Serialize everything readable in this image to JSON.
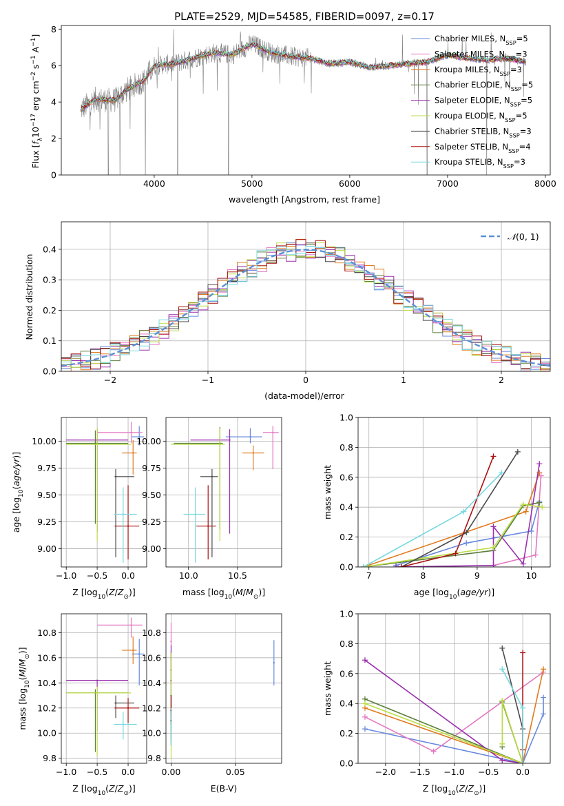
{
  "figure_title": "PLATE=2529, MJD=54585, FIBERID=0097, z=0.17",
  "colors": {
    "Chabrier MILES": "#6688dd",
    "Salpeter MILES": "#e377c2",
    "Kroupa MILES": "#e07b1f",
    "Chabrier ELODIE": "#5a7d3a",
    "Salpeter ELODIE": "#9b2fae",
    "Kroupa ELODIE": "#bbdd44",
    "Chabrier STELIB": "#4a4a4a",
    "Salpeter STELIB": "#aa1111",
    "Kroupa STELIB": "#77d8df"
  },
  "chart_data": [
    {
      "id": "spectrum",
      "type": "line",
      "xlabel": "wavelength [Angstrom, rest frame]",
      "ylabel": "Flux [f_λ10^-17 erg cm^-2 s^-1 A^-1]",
      "xlim": [
        3050,
        8050
      ],
      "ylim": [
        0,
        8.2
      ],
      "xticks": [
        4000,
        5000,
        6000,
        7000,
        8000
      ],
      "yticks": [
        0,
        2,
        4,
        6,
        8
      ],
      "grid": false,
      "legend_position": "top-right",
      "data_series": {
        "name": "data",
        "color": "#808080",
        "x_range": [
          3250,
          7800
        ]
      },
      "model_continuum": {
        "x": [
          3250,
          3400,
          3600,
          3700,
          3900,
          4000,
          4200,
          4400,
          4600,
          4800,
          5000,
          5200,
          5400,
          5600,
          5800,
          6000,
          6200,
          6400,
          6600,
          6800,
          7000,
          7200,
          7400,
          7600,
          7800
        ],
        "y": [
          3.6,
          4.15,
          4.1,
          4.6,
          5.2,
          6.0,
          6.1,
          6.4,
          6.7,
          6.6,
          7.2,
          6.7,
          6.5,
          6.4,
          6.1,
          6.2,
          5.9,
          6.0,
          6.1,
          6.2,
          6.6,
          6.4,
          6.3,
          6.4,
          6.2
        ]
      },
      "model_series": [
        {
          "name": "Chabrier MILES",
          "nssp": "5"
        },
        {
          "name": "Salpeter MILES",
          "nssp": "3"
        },
        {
          "name": "Kroupa MILES",
          "nssp": "3"
        },
        {
          "name": "Chabrier ELODIE",
          "nssp": "5"
        },
        {
          "name": "Salpeter ELODIE",
          "nssp": "5"
        },
        {
          "name": "Kroupa ELODIE",
          "nssp": "5"
        },
        {
          "name": "Chabrier STELIB",
          "nssp": "3"
        },
        {
          "name": "Salpeter STELIB",
          "nssp": "4"
        },
        {
          "name": "Kroupa STELIB",
          "nssp": "3"
        }
      ]
    },
    {
      "id": "residuals",
      "type": "bar",
      "xlabel": "(data-model)/error",
      "ylabel": "Normed distribution",
      "xlim": [
        -2.5,
        2.5
      ],
      "ylim": [
        0,
        0.49
      ],
      "xticks": [
        -2,
        -1,
        0,
        1,
        2
      ],
      "yticks": [
        0.0,
        0.1,
        0.2,
        0.3,
        0.4
      ],
      "grid": true,
      "legend_position": "top-right",
      "legend_label": "N(0,1)",
      "gaussian": {
        "mean": 0,
        "sigma": 1,
        "color": "#5b8fd6"
      },
      "histogram_bin_width": 0.1,
      "histogram_range": [
        -2.5,
        2.5
      ]
    },
    {
      "id": "age_vs_Z",
      "type": "scatter",
      "xlabel": "Z [log10(Z/Z_sun)]",
      "ylabel": "age  [log10(age/yr)]",
      "xlim": [
        -1.08,
        0.3
      ],
      "ylim": [
        8.83,
        10.22
      ],
      "xticks": [
        -1.0,
        -0.5,
        0.0
      ],
      "yticks": [
        9.0,
        9.25,
        9.5,
        9.75,
        10.0
      ],
      "grid": true,
      "points": [
        {
          "series": "Chabrier MILES",
          "x": 0.18,
          "xerr": [
            0.12,
            0.08
          ],
          "y": 10.04,
          "yerr": [
            0.08,
            0.1
          ]
        },
        {
          "series": "Salpeter MILES",
          "x": 0.05,
          "xerr": [
            0.55,
            0.18
          ],
          "y": 10.08,
          "yerr": [
            0.1,
            0.1
          ]
        },
        {
          "series": "Kroupa MILES",
          "x": 0.08,
          "xerr": [
            0.18,
            0.06
          ],
          "y": 9.89,
          "yerr": [
            0.2,
            0.12
          ]
        },
        {
          "series": "Chabrier ELODIE",
          "x": -0.53,
          "xerr": [
            0.47,
            0.53
          ],
          "y": 9.98,
          "yerr": [
            0.75,
            0.12
          ]
        },
        {
          "series": "Salpeter ELODIE",
          "x": -0.5,
          "xerr": [
            0.5,
            0.5
          ],
          "y": 10.01,
          "yerr": [
            0.85,
            0.1
          ]
        },
        {
          "series": "Kroupa ELODIE",
          "x": -0.5,
          "xerr": [
            0.5,
            0.55
          ],
          "y": 9.97,
          "yerr": [
            0.9,
            0.15
          ]
        },
        {
          "series": "Chabrier STELIB",
          "x": -0.2,
          "xerr": [
            0.02,
            0.3
          ],
          "y": 9.67,
          "yerr": [
            0.75,
            0.07
          ]
        },
        {
          "series": "Salpeter STELIB",
          "x": 0.0,
          "xerr": [
            0.22,
            0.18
          ],
          "y": 9.21,
          "yerr": [
            0.31,
            0.38
          ]
        },
        {
          "series": "Kroupa STELIB",
          "x": -0.08,
          "xerr": [
            0.15,
            0.22
          ],
          "y": 9.32,
          "yerr": [
            0.45,
            0.25
          ]
        }
      ]
    },
    {
      "id": "age_vs_mass",
      "type": "scatter",
      "xlabel": "mass [log10(M/M_sun)]",
      "ylabel": "",
      "xlim": [
        9.77,
        10.95
      ],
      "ylim": [
        8.83,
        10.22
      ],
      "xticks": [
        10.0,
        10.5
      ],
      "yticks": [
        9.0,
        9.25,
        9.5,
        9.75,
        10.0
      ],
      "grid": true,
      "points": [
        {
          "series": "Chabrier MILES",
          "x": 10.63,
          "xerr": [
            0.25,
            0.12
          ],
          "y": 10.04,
          "yerr": [
            0.06,
            0.08
          ]
        },
        {
          "series": "Salpeter MILES",
          "x": 10.86,
          "xerr": [
            0.1,
            0.06
          ],
          "y": 10.08,
          "yerr": [
            0.34,
            0.06
          ]
        },
        {
          "series": "Kroupa MILES",
          "x": 10.66,
          "xerr": [
            0.11,
            0.11
          ],
          "y": 9.89,
          "yerr": [
            0.16,
            0.07
          ]
        },
        {
          "series": "Chabrier ELODIE",
          "x": 10.32,
          "xerr": [
            0.47,
            0.03
          ],
          "y": 9.98,
          "yerr": [
            0.8,
            0.15
          ]
        },
        {
          "series": "Salpeter ELODIE",
          "x": 10.42,
          "xerr": [
            0.4,
            0.0
          ],
          "y": 10.01,
          "yerr": [
            0.87,
            0.1
          ]
        },
        {
          "series": "Kroupa ELODIE",
          "x": 10.32,
          "xerr": [
            0.5,
            0.05
          ],
          "y": 9.97,
          "yerr": [
            0.9,
            0.15
          ]
        },
        {
          "series": "Chabrier STELIB",
          "x": 10.24,
          "xerr": [
            0.12,
            0.06
          ],
          "y": 9.67,
          "yerr": [
            0.75,
            0.07
          ]
        },
        {
          "series": "Salpeter STELIB",
          "x": 10.2,
          "xerr": [
            0.12,
            0.08
          ],
          "y": 9.21,
          "yerr": [
            0.31,
            0.38
          ]
        },
        {
          "series": "Kroupa STELIB",
          "x": 10.07,
          "xerr": [
            0.12,
            0.1
          ],
          "y": 9.32,
          "yerr": [
            0.45,
            0.25
          ]
        }
      ]
    },
    {
      "id": "weight_vs_age",
      "type": "line",
      "xlabel": "age  [log10(age/yr)]",
      "ylabel": "mass weight",
      "xlim": [
        6.8,
        10.35
      ],
      "ylim": [
        0,
        1.0
      ],
      "xticks": [
        7,
        8,
        9,
        10
      ],
      "yticks": [
        0.0,
        0.2,
        0.4,
        0.6,
        0.8,
        1.0
      ],
      "grid": true,
      "series": [
        {
          "name": "Chabrier MILES",
          "x": [
            7.5,
            8.8,
            10.0,
            10.15
          ],
          "y": [
            0.01,
            0.16,
            0.24,
            0.44
          ]
        },
        {
          "name": "Salpeter MILES",
          "x": [
            9.3,
            10.08,
            10.18
          ],
          "y": [
            0.01,
            0.08,
            0.61
          ]
        },
        {
          "name": "Kroupa MILES",
          "x": [
            6.9,
            9.9,
            10.15
          ],
          "y": [
            0.0,
            0.37,
            0.63
          ]
        },
        {
          "name": "Chabrier ELODIE",
          "x": [
            6.9,
            9.3,
            9.85,
            10.15
          ],
          "y": [
            0.0,
            0.11,
            0.41,
            0.43
          ]
        },
        {
          "name": "Salpeter ELODIE",
          "x": [
            7.5,
            9.3,
            9.3,
            9.85,
            10.15
          ],
          "y": [
            0.0,
            0.01,
            0.27,
            0.02,
            0.69
          ]
        },
        {
          "name": "Kroupa ELODIE",
          "x": [
            6.9,
            9.3,
            9.85,
            10.2
          ],
          "y": [
            0.0,
            0.13,
            0.42,
            0.4
          ]
        },
        {
          "name": "Chabrier STELIB",
          "x": [
            7.6,
            8.8,
            9.75
          ],
          "y": [
            0.0,
            0.23,
            0.77
          ]
        },
        {
          "name": "Salpeter STELIB",
          "x": [
            7.6,
            8.6,
            9.3
          ],
          "y": [
            0.0,
            0.09,
            0.74
          ]
        },
        {
          "name": "Kroupa STELIB",
          "x": [
            6.9,
            8.75,
            9.45
          ],
          "y": [
            0.0,
            0.37,
            0.63
          ]
        }
      ]
    },
    {
      "id": "mass_vs_Z",
      "type": "scatter",
      "xlabel": "Z [log10(Z/Z_sun)]",
      "ylabel": "mass [log10(M/M_sun)]",
      "xlim": [
        -1.08,
        0.3
      ],
      "ylim": [
        9.76,
        10.95
      ],
      "xticks": [
        -1.0,
        -0.5,
        0.0
      ],
      "yticks": [
        9.8,
        10.0,
        10.2,
        10.4,
        10.6,
        10.8
      ],
      "grid": true,
      "points": [
        {
          "series": "Chabrier MILES",
          "x": 0.18,
          "xerr": [
            0.12,
            0.08
          ],
          "y": 10.63,
          "yerr": [
            0.25,
            0.12
          ]
        },
        {
          "series": "Salpeter MILES",
          "x": 0.05,
          "xerr": [
            0.55,
            0.18
          ],
          "y": 10.86,
          "yerr": [
            0.1,
            0.06
          ]
        },
        {
          "series": "Kroupa MILES",
          "x": 0.08,
          "xerr": [
            0.18,
            0.06
          ],
          "y": 10.66,
          "yerr": [
            0.11,
            0.11
          ]
        },
        {
          "series": "Chabrier ELODIE",
          "x": -0.53,
          "xerr": [
            0.47,
            0.53
          ],
          "y": 10.32,
          "yerr": [
            0.47,
            0.03
          ]
        },
        {
          "series": "Salpeter ELODIE",
          "x": -0.5,
          "xerr": [
            0.5,
            0.5
          ],
          "y": 10.42,
          "yerr": [
            0.4,
            0.0
          ]
        },
        {
          "series": "Kroupa ELODIE",
          "x": -0.5,
          "xerr": [
            0.5,
            0.55
          ],
          "y": 10.32,
          "yerr": [
            0.5,
            0.05
          ]
        },
        {
          "series": "Chabrier STELIB",
          "x": -0.2,
          "xerr": [
            0.02,
            0.3
          ],
          "y": 10.24,
          "yerr": [
            0.12,
            0.06
          ]
        },
        {
          "series": "Salpeter STELIB",
          "x": 0.0,
          "xerr": [
            0.22,
            0.18
          ],
          "y": 10.2,
          "yerr": [
            0.12,
            0.08
          ]
        },
        {
          "series": "Kroupa STELIB",
          "x": -0.08,
          "xerr": [
            0.15,
            0.22
          ],
          "y": 10.07,
          "yerr": [
            0.12,
            0.1
          ]
        }
      ]
    },
    {
      "id": "mass_vs_ebv",
      "type": "scatter",
      "xlabel": "E(B-V)",
      "ylabel": "",
      "xlim": [
        -0.004,
        0.086
      ],
      "ylim": [
        9.76,
        10.95
      ],
      "xticks": [
        0.0,
        0.05
      ],
      "yticks": [
        9.8,
        10.0,
        10.2,
        10.4,
        10.6,
        10.8
      ],
      "grid": true,
      "points": [
        {
          "series": "Chabrier MILES",
          "x": 0.08,
          "y": 10.56,
          "yerr": [
            0.18,
            0.18
          ]
        },
        {
          "series": "Salpeter MILES",
          "x": 0.0,
          "y": 10.73,
          "yerr": [
            0.15,
            0.15
          ]
        },
        {
          "series": "Kroupa MILES",
          "x": 0.0,
          "y": 10.5,
          "yerr": [
            0.12,
            0.12
          ]
        },
        {
          "series": "Chabrier ELODIE",
          "x": 0.0,
          "y": 10.3,
          "yerr": [
            0.35,
            0.35
          ]
        },
        {
          "series": "Salpeter ELODIE",
          "x": 0.0,
          "y": 10.42,
          "yerr": [
            0.28,
            0.28
          ]
        },
        {
          "series": "Kroupa ELODIE",
          "x": 0.0,
          "y": 10.22,
          "yerr": [
            0.42,
            0.42
          ]
        },
        {
          "series": "Chabrier STELIB",
          "x": 0.0,
          "y": 10.1,
          "yerr": [
            0.2,
            0.2
          ]
        },
        {
          "series": "Salpeter STELIB",
          "x": 0.0,
          "y": 10.18,
          "yerr": [
            0.12,
            0.12
          ]
        },
        {
          "series": "Kroupa STELIB",
          "x": 0.0,
          "y": 10.05,
          "yerr": [
            0.15,
            0.15
          ]
        }
      ]
    },
    {
      "id": "weight_vs_Z",
      "type": "line",
      "xlabel": "Z [log10(Z/Z_sun)]",
      "ylabel": "mass weight",
      "xlim": [
        -2.4,
        0.4
      ],
      "ylim": [
        0,
        1.0
      ],
      "xticks": [
        -2.0,
        -1.5,
        -1.0,
        -0.5,
        0.0
      ],
      "yticks": [
        0.0,
        0.2,
        0.4,
        0.6,
        0.8,
        1.0
      ],
      "grid": true,
      "series": [
        {
          "name": "Chabrier MILES",
          "x": [
            -2.3,
            0.0,
            0.3,
            0.3
          ],
          "y": [
            0.23,
            0.0,
            0.33,
            0.44
          ]
        },
        {
          "name": "Salpeter MILES",
          "x": [
            -2.3,
            -1.3,
            0.3
          ],
          "y": [
            0.31,
            0.08,
            0.61
          ]
        },
        {
          "name": "Kroupa MILES",
          "x": [
            -2.3,
            0.0,
            0.3
          ],
          "y": [
            0.37,
            0.0,
            0.63
          ]
        },
        {
          "name": "Chabrier ELODIE",
          "x": [
            -2.3,
            0.0,
            -0.3,
            -0.3
          ],
          "y": [
            0.43,
            0.0,
            0.41,
            0.11
          ]
        },
        {
          "name": "Salpeter ELODIE",
          "x": [
            -2.3,
            -0.3,
            0.0
          ],
          "y": [
            0.69,
            0.02,
            0.0
          ]
        },
        {
          "name": "Kroupa ELODIE",
          "x": [
            -2.3,
            0.0,
            -0.3,
            -0.3
          ],
          "y": [
            0.4,
            0.0,
            0.42,
            0.13
          ]
        },
        {
          "name": "Chabrier STELIB",
          "x": [
            -0.3,
            0.0,
            0.0
          ],
          "y": [
            0.77,
            0.23,
            0.0
          ]
        },
        {
          "name": "Salpeter STELIB",
          "x": [
            0.0,
            0.0,
            0.0
          ],
          "y": [
            0.74,
            0.09,
            0.0
          ]
        },
        {
          "name": "Kroupa STELIB",
          "x": [
            -0.3,
            0.0,
            0.0
          ],
          "y": [
            0.63,
            0.37,
            0.0
          ]
        }
      ]
    }
  ]
}
